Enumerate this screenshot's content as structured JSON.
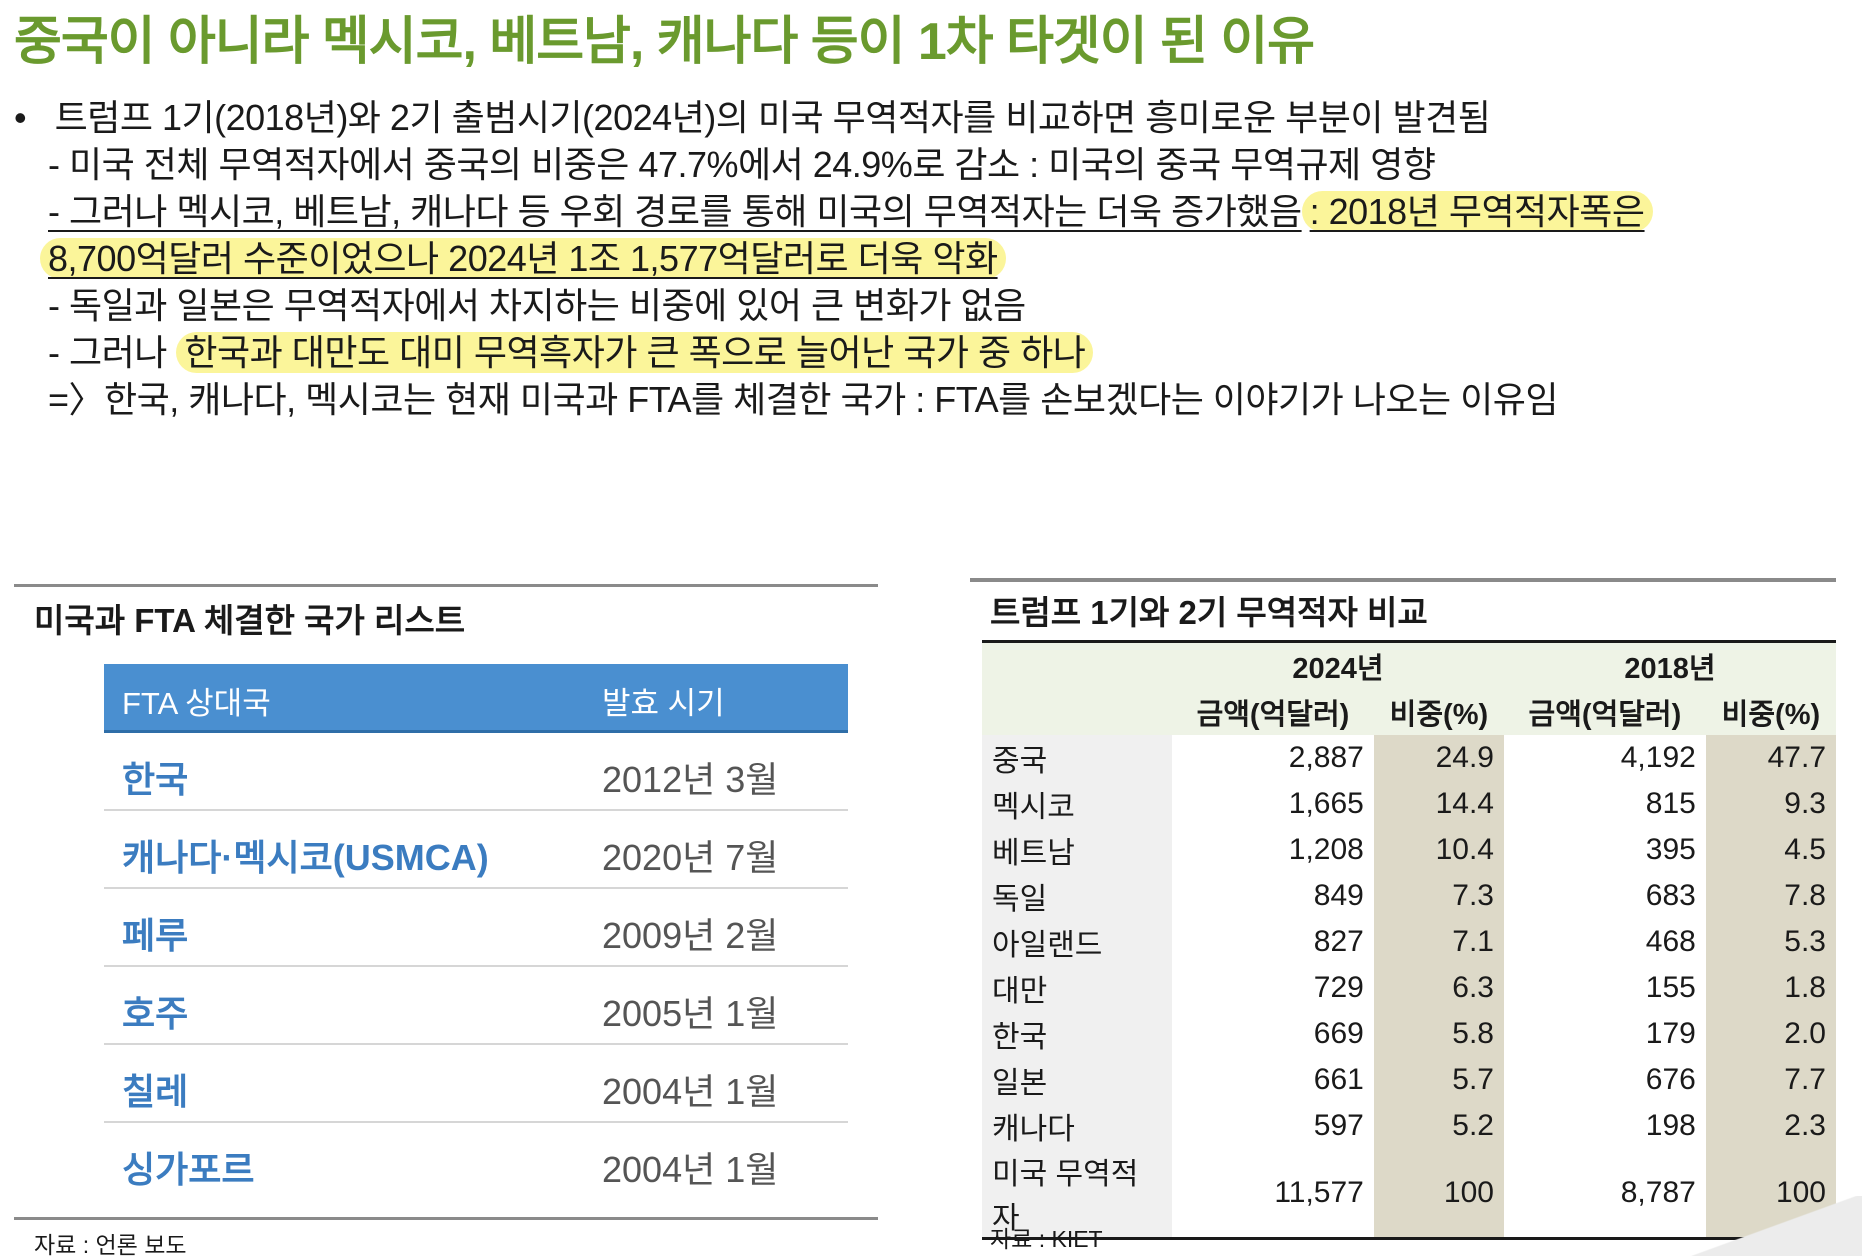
{
  "title": "중국이 아니라 멕시코, 베트남, 캐나다 등이 1차 타겟이 된 이유",
  "bullets": {
    "b1_mark": "•",
    "b1": "트럼프 1기(2018년)와 2기 출범시기(2024년)의 미국 무역적자를 비교하면 흥미로운 부분이 발견됨",
    "b2": "- 미국 전체 무역적자에서 중국의 비중은 47.7%에서 24.9%로 감소 : 미국의 중국 무역규제 영향",
    "b3a": "- 그러나 멕시코, 베트남, 캐나다 등 우회 경로를 통해 미국의 무역적자는 더욱 증가했음",
    "b3b": ": 2018년 무역적자폭은",
    "b3c": "8,700억달러 수준이었으나 2024년 1조 1,577억달러로 더욱 악화",
    "b4": "- 독일과 일본은 무역적자에서 차지하는 비중에 있어 큰 변화가 없음",
    "b5a": "- 그러나",
    "b5b": "한국과 대만도 대미 무역흑자가 큰 폭으로 늘어난 국가 중 하나",
    "b6": "=〉한국, 캐나다, 멕시코는 현재 미국과 FTA를 체결한 국가 : FTA를 손보겠다는 이야기가 나오는 이유임"
  },
  "fta": {
    "title": "미국과 FTA 체결한 국가 리스트",
    "header": [
      "FTA 상대국",
      "발효 시기"
    ],
    "rows": [
      [
        "한국",
        "2012년 3월"
      ],
      [
        "캐나다·멕시코(USMCA)",
        "2020년 7월"
      ],
      [
        "페루",
        "2009년 2월"
      ],
      [
        "호주",
        "2005년 1월"
      ],
      [
        "칠레",
        "2004년 1월"
      ],
      [
        "싱가포르",
        "2004년 1월"
      ]
    ],
    "source": "자료 : 언론 보도"
  },
  "trade": {
    "title": "트럼프 1기와 2기 무역적자 비교",
    "years": [
      "2024년",
      "2018년"
    ],
    "sub": [
      "금액(억달러)",
      "비중(%)",
      "금액(억달러)",
      "비중(%)"
    ],
    "rows": [
      [
        "중국",
        "2,887",
        "24.9",
        "4,192",
        "47.7"
      ],
      [
        "멕시코",
        "1,665",
        "14.4",
        "815",
        "9.3"
      ],
      [
        "베트남",
        "1,208",
        "10.4",
        "395",
        "4.5"
      ],
      [
        "독일",
        "849",
        "7.3",
        "683",
        "7.8"
      ],
      [
        "아일랜드",
        "827",
        "7.1",
        "468",
        "5.3"
      ],
      [
        "대만",
        "729",
        "6.3",
        "155",
        "1.8"
      ],
      [
        "한국",
        "669",
        "5.8",
        "179",
        "2.0"
      ],
      [
        "일본",
        "661",
        "5.7",
        "676",
        "7.7"
      ],
      [
        "캐나다",
        "597",
        "5.2",
        "198",
        "2.3"
      ],
      [
        "미국 무역적자",
        "11,577",
        "100",
        "8,787",
        "100"
      ]
    ],
    "source": "자료 : KIET"
  },
  "colors": {
    "title": "#6a9a2e",
    "highlight": "#fbf59a",
    "fta_header": "#4a8fd0",
    "fta_text": "#3b7cc0",
    "share_col": "#ddd9c8"
  }
}
